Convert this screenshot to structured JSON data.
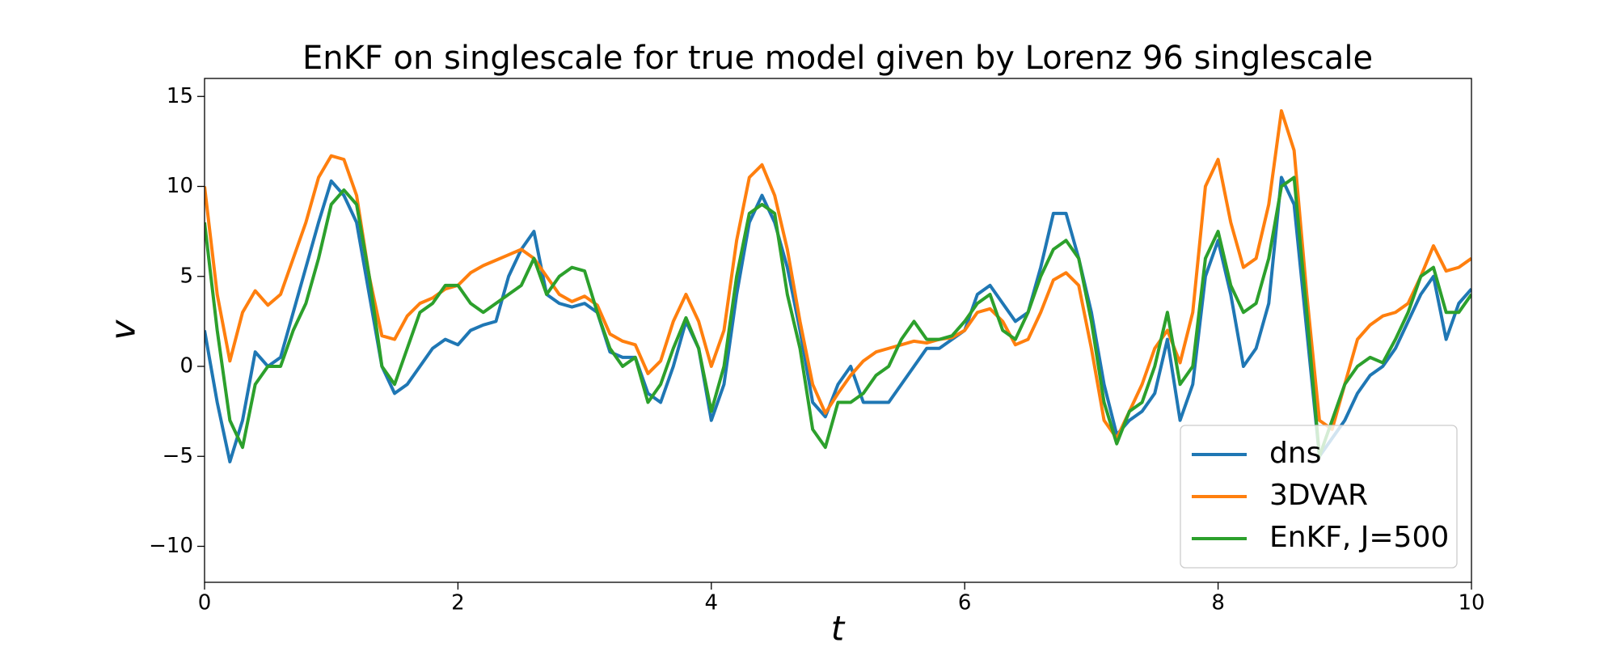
{
  "chart_data": {
    "type": "line",
    "title": "EnKF on singlescale for true model given by Lorenz 96 singlescale",
    "xlabel": "t",
    "ylabel": "v",
    "x": [
      0,
      0.1,
      0.2,
      0.3,
      0.4,
      0.5,
      0.6,
      0.7,
      0.8,
      0.9,
      1,
      1.1,
      1.2,
      1.3,
      1.4,
      1.5,
      1.6,
      1.7,
      1.8,
      1.9,
      2,
      2.1,
      2.2,
      2.3,
      2.4,
      2.5,
      2.6,
      2.7,
      2.8,
      2.9,
      3,
      3.1,
      3.2,
      3.3,
      3.4,
      3.5,
      3.6,
      3.7,
      3.8,
      3.9,
      4,
      4.1,
      4.2,
      4.3,
      4.4,
      4.5,
      4.6,
      4.7,
      4.8,
      4.9,
      5,
      5.1,
      5.2,
      5.3,
      5.4,
      5.5,
      5.6,
      5.7,
      5.8,
      5.9,
      6,
      6.1,
      6.2,
      6.3,
      6.4,
      6.5,
      6.6,
      6.7,
      6.8,
      6.9,
      7,
      7.1,
      7.2,
      7.3,
      7.4,
      7.5,
      7.6,
      7.7,
      7.8,
      7.9,
      8,
      8.1,
      8.2,
      8.3,
      8.4,
      8.5,
      8.6,
      8.7,
      8.8,
      8.9,
      9,
      9.1,
      9.2,
      9.3,
      9.4,
      9.5,
      9.6,
      9.7,
      9.8,
      9.9,
      10
    ],
    "series": [
      {
        "name": "dns",
        "color": "#1f77b4",
        "values": [
          2,
          -2,
          -5.3,
          -3,
          0.8,
          0,
          0.5,
          3,
          5.5,
          8,
          10.3,
          9.5,
          8,
          4,
          0,
          -1.5,
          -1,
          0,
          1,
          1.5,
          1.2,
          2,
          2.3,
          2.5,
          5,
          6.5,
          7.5,
          4,
          3.5,
          3.3,
          3.5,
          3,
          0.8,
          0.5,
          0.5,
          -1.5,
          -2,
          0,
          2.5,
          1,
          -3,
          -1,
          4,
          8,
          9.5,
          8,
          5.5,
          2,
          -2,
          -2.8,
          -1,
          0,
          -2,
          -2,
          -2,
          -1,
          0,
          1,
          1,
          1.5,
          2,
          4,
          4.5,
          3.5,
          2.5,
          3,
          5.5,
          8.5,
          8.5,
          6,
          3,
          -1,
          -3.8,
          -3,
          -2.5,
          -1.5,
          1.5,
          -3,
          -1,
          5,
          7,
          4,
          0,
          1,
          3.5,
          10.5,
          9,
          2,
          -5,
          -4,
          -3,
          -1.5,
          -0.5,
          0,
          1,
          2.5,
          4,
          5,
          1.5,
          3.5,
          4.3
        ]
      },
      {
        "name": "3DVAR",
        "color": "#ff7f0e",
        "values": [
          10,
          4,
          0.3,
          3,
          4.2,
          3.4,
          4,
          6,
          8,
          10.5,
          11.7,
          11.5,
          9.5,
          5,
          1.7,
          1.5,
          2.8,
          3.5,
          3.8,
          4.3,
          4.5,
          5.2,
          5.6,
          5.9,
          6.2,
          6.5,
          6,
          5,
          4,
          3.6,
          3.9,
          3.4,
          1.8,
          1.4,
          1.2,
          -0.4,
          0.3,
          2.5,
          4,
          2.5,
          0,
          2,
          7,
          10.5,
          11.2,
          9.5,
          6.5,
          2.5,
          -1,
          -2.6,
          -1.5,
          -0.5,
          0.3,
          0.8,
          1,
          1.2,
          1.4,
          1.3,
          1.5,
          1.6,
          2,
          3,
          3.2,
          2.5,
          1.2,
          1.5,
          3,
          4.8,
          5.2,
          4.5,
          1,
          -3,
          -4,
          -2.5,
          -1,
          1,
          2,
          0.2,
          3,
          10,
          11.5,
          8,
          5.5,
          6,
          9,
          14.2,
          12,
          4,
          -3,
          -3.5,
          -1,
          1.5,
          2.3,
          2.8,
          3,
          3.5,
          5,
          6.7,
          5.3,
          5.5,
          6
        ]
      },
      {
        "name": "EnKF, J=500",
        "color": "#2ca02c",
        "values": [
          8,
          2,
          -3,
          -4.5,
          -1,
          0,
          0,
          2,
          3.5,
          6,
          9,
          9.8,
          9,
          5,
          0,
          -1,
          1,
          3,
          3.5,
          4.5,
          4.5,
          3.5,
          3,
          3.5,
          4,
          4.5,
          6,
          4,
          5,
          5.5,
          5.3,
          3,
          1,
          0,
          0.5,
          -2,
          -1,
          1,
          2.7,
          1,
          -2.5,
          0,
          5,
          8.5,
          9,
          8.5,
          4,
          1,
          -3.5,
          -4.5,
          -2,
          -2,
          -1.5,
          -0.5,
          0,
          1.5,
          2.5,
          1.5,
          1.5,
          1.7,
          2.5,
          3.5,
          4,
          2,
          1.5,
          3,
          5,
          6.5,
          7,
          6,
          2.5,
          -2,
          -4.3,
          -2.5,
          -2,
          0,
          3,
          -1,
          0,
          6,
          7.5,
          4.5,
          3,
          3.5,
          6,
          10,
          10.5,
          3,
          -5,
          -3,
          -1,
          0,
          0.5,
          0.2,
          1.5,
          3,
          5,
          5.5,
          3,
          3,
          4
        ]
      }
    ],
    "xlim": [
      0,
      10
    ],
    "ylim": [
      -12,
      16
    ],
    "xticks": [
      0,
      2,
      4,
      6,
      8,
      10
    ],
    "yticks": [
      {
        "value": -10,
        "label": "−10"
      },
      {
        "value": -5,
        "label": "−5"
      },
      0,
      5,
      10,
      15
    ],
    "legend": "lower right"
  }
}
